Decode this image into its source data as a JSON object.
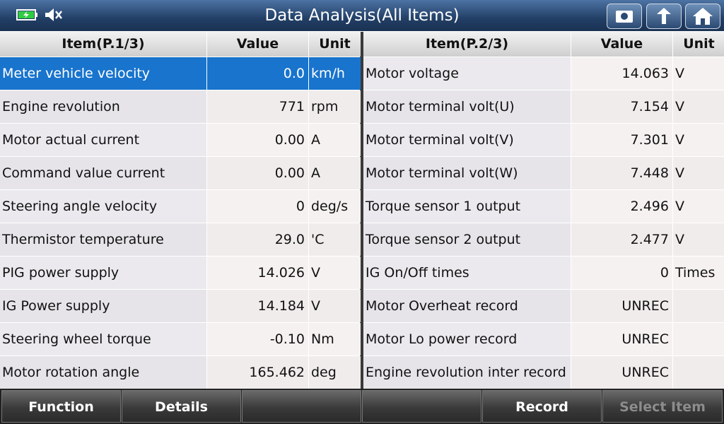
{
  "header": {
    "title": "Data Analysis(All Items)"
  },
  "tables": [
    {
      "columns": [
        "Item(P.1/3)",
        "Value",
        "Unit"
      ],
      "rows": [
        {
          "item": "Meter vehicle velocity",
          "value": "0.0",
          "unit": "km/h"
        },
        {
          "item": "Engine revolution",
          "value": "771",
          "unit": "rpm"
        },
        {
          "item": "Motor actual current",
          "value": "0.00",
          "unit": "A"
        },
        {
          "item": "Command value current",
          "value": "0.00",
          "unit": "A"
        },
        {
          "item": "Steering angle velocity",
          "value": "0",
          "unit": "deg/s"
        },
        {
          "item": "Thermistor temperature",
          "value": "29.0",
          "unit": "'C"
        },
        {
          "item": "PIG power supply",
          "value": "14.026",
          "unit": "V"
        },
        {
          "item": "IG Power supply",
          "value": "14.184",
          "unit": "V"
        },
        {
          "item": "Steering wheel torque",
          "value": "-0.10",
          "unit": "Nm"
        },
        {
          "item": "Motor rotation angle",
          "value": "165.462",
          "unit": "deg"
        }
      ]
    },
    {
      "columns": [
        "Item(P.2/3)",
        "Value",
        "Unit"
      ],
      "rows": [
        {
          "item": "Motor voltage",
          "value": "14.063",
          "unit": "V"
        },
        {
          "item": "Motor terminal volt(U)",
          "value": "7.154",
          "unit": "V"
        },
        {
          "item": "Motor terminal volt(V)",
          "value": "7.301",
          "unit": "V"
        },
        {
          "item": "Motor terminal volt(W)",
          "value": "7.448",
          "unit": "V"
        },
        {
          "item": "Torque sensor 1 output",
          "value": "2.496",
          "unit": "V"
        },
        {
          "item": "Torque sensor 2 output",
          "value": "2.477",
          "unit": "V"
        },
        {
          "item": "IG On/Off times",
          "value": "0",
          "unit": "Times"
        },
        {
          "item": "Motor Overheat record",
          "value": "UNREC"
        },
        {
          "item": "Motor Lo power record",
          "value": "UNREC"
        },
        {
          "item": "Engine revolution inter record",
          "value": "UNREC"
        }
      ]
    }
  ],
  "footer": {
    "buttons": [
      "Function",
      "Details",
      "Record",
      "Select Item"
    ]
  }
}
